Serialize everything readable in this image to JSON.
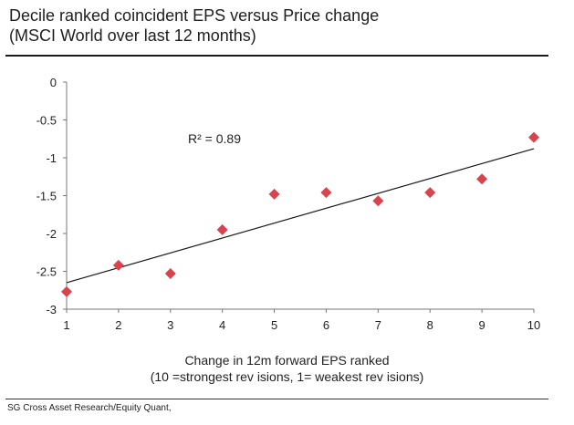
{
  "chart_data": {
    "type": "scatter",
    "title_line1": "Decile ranked coincident EPS versus Price change",
    "title_line2": "(MSCI World over last 12 months)",
    "xlabel_line1": "Change in 12m forward EPS ranked",
    "xlabel_line2": "(10 =strongest rev isions, 1= weakest rev isions)",
    "ylabel": "",
    "x": [
      1,
      2,
      3,
      4,
      5,
      6,
      7,
      8,
      9,
      10
    ],
    "y": [
      -2.77,
      -2.42,
      -2.53,
      -1.95,
      -1.48,
      -1.46,
      -1.57,
      -1.46,
      -1.28,
      -0.73
    ],
    "x_ticks": [
      "1",
      "2",
      "3",
      "4",
      "5",
      "6",
      "7",
      "8",
      "9",
      "10"
    ],
    "y_ticks": [
      "0",
      "-0.5",
      "-1",
      "-1.5",
      "-2",
      "-2.5",
      "-3"
    ],
    "y_tick_values": [
      0,
      -0.5,
      -1,
      -1.5,
      -2,
      -2.5,
      -3
    ],
    "xlim": [
      1,
      10
    ],
    "ylim": [
      -3,
      0
    ],
    "trendline": {
      "x": [
        1,
        10
      ],
      "y": [
        -2.65,
        -0.88
      ]
    },
    "annotation": "R² = 0.89",
    "marker_color": "#d9434d",
    "line_color": "#1a1a1a",
    "grid": false
  },
  "source": "SG Cross Asset Research/Equity Quant,"
}
